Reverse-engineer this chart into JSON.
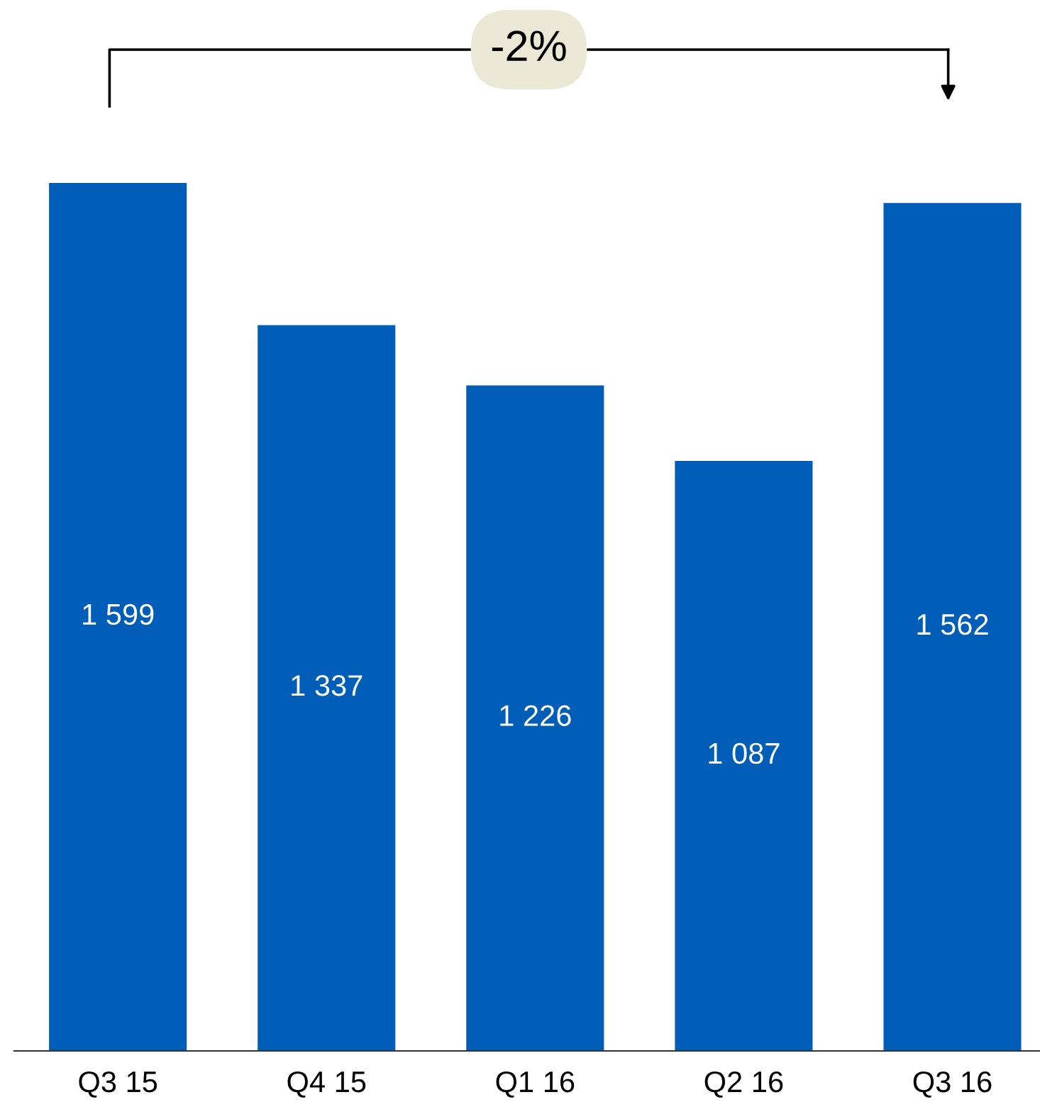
{
  "chart_data": {
    "type": "bar",
    "categories": [
      "Q3 15",
      "Q4 15",
      "Q1 16",
      "Q2 16",
      "Q3 16"
    ],
    "values": [
      1599,
      1337,
      1226,
      1087,
      1562
    ],
    "value_labels": [
      "1 599",
      "1 337",
      "1 226",
      "1 087",
      "1 562"
    ],
    "color": "#005eb8",
    "tick_labels": "x",
    "annotations": [
      "-2%"
    ],
    "grid": false,
    "legend": false
  }
}
